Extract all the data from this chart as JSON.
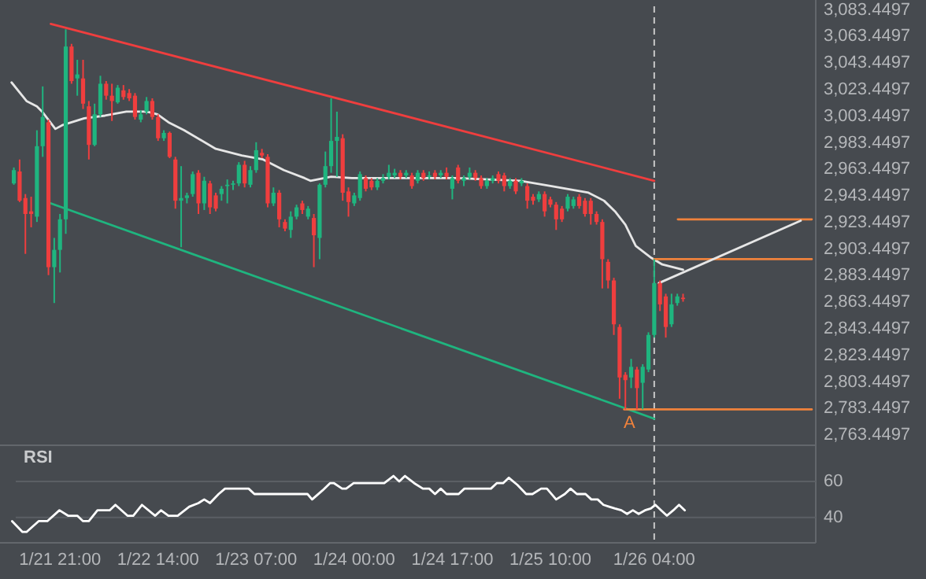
{
  "chart_data": [
    {
      "type": "candlestick",
      "xlim": [
        "--01-21T10:36",
        "--01-27T08:00"
      ],
      "ylim": [
        2756,
        3091
      ],
      "tick_labels": "y",
      "yticks": [
        {
          "value": 2763.4497,
          "label": "2,763.4497"
        },
        {
          "value": 2783.4497,
          "label": "2,783.4497"
        },
        {
          "value": 2803.4497,
          "label": "2,803.4497"
        },
        {
          "value": 2823.4497,
          "label": "2,823.4497"
        },
        {
          "value": 2843.4497,
          "label": "2,843.4497"
        },
        {
          "value": 2863.4497,
          "label": "2,863.4497"
        },
        {
          "value": 2883.4497,
          "label": "2,883.4497"
        },
        {
          "value": 2903.4497,
          "label": "2,903.4497"
        },
        {
          "value": 2923.4497,
          "label": "2,923.4497"
        },
        {
          "value": 2943.4497,
          "label": "2,943.4497"
        },
        {
          "value": 2963.4497,
          "label": "2,963.4497"
        },
        {
          "value": 2983.4497,
          "label": "2,983.4497"
        },
        {
          "value": 3003.4497,
          "label": "3,003.4497"
        },
        {
          "value": 3023.4497,
          "label": "3,023.4497"
        },
        {
          "value": 3043.4497,
          "label": "3,043.4497"
        },
        {
          "value": 3063.4497,
          "label": "3,063.4497"
        },
        {
          "value": 3083.4497,
          "label": "3,083.4497"
        }
      ],
      "x": [
        "--01-21T13:00",
        "--01-21T14:00",
        "--01-21T15:00",
        "--01-21T16:00",
        "--01-21T17:00",
        "--01-21T18:00",
        "--01-21T19:00",
        "--01-21T20:00",
        "--01-21T21:00",
        "--01-21T22:00",
        "--01-21T23:00",
        "--01-22T00:00",
        "--01-22T01:00",
        "--01-22T02:00",
        "--01-22T03:00",
        "--01-22T04:00",
        "--01-22T05:00",
        "--01-22T06:00",
        "--01-22T07:00",
        "--01-22T08:00",
        "--01-22T09:00",
        "--01-22T10:00",
        "--01-22T11:00",
        "--01-22T12:00",
        "--01-22T13:00",
        "--01-22T14:00",
        "--01-22T15:00",
        "--01-22T16:00",
        "--01-22T17:00",
        "--01-22T18:00",
        "--01-22T19:00",
        "--01-22T20:00",
        "--01-22T21:00",
        "--01-22T22:00",
        "--01-22T23:00",
        "--01-23T00:00",
        "--01-23T01:00",
        "--01-23T02:00",
        "--01-23T03:00",
        "--01-23T04:00",
        "--01-23T05:00",
        "--01-23T06:00",
        "--01-23T07:00",
        "--01-23T08:00",
        "--01-23T09:00",
        "--01-23T10:00",
        "--01-23T11:00",
        "--01-23T12:00",
        "--01-23T13:00",
        "--01-23T14:00",
        "--01-23T15:00",
        "--01-23T16:00",
        "--01-23T17:00",
        "--01-23T18:00",
        "--01-23T19:00",
        "--01-23T20:00",
        "--01-23T21:00",
        "--01-23T22:00",
        "--01-23T23:00",
        "--01-24T00:00",
        "--01-24T01:00",
        "--01-24T02:00",
        "--01-24T03:00",
        "--01-24T04:00",
        "--01-24T05:00",
        "--01-24T06:00",
        "--01-24T07:00",
        "--01-24T08:00",
        "--01-24T09:00",
        "--01-24T10:00",
        "--01-24T11:00",
        "--01-24T12:00",
        "--01-24T13:00",
        "--01-24T14:00",
        "--01-24T15:00",
        "--01-24T16:00",
        "--01-24T17:00",
        "--01-24T18:00",
        "--01-24T19:00",
        "--01-24T20:00",
        "--01-24T21:00",
        "--01-24T22:00",
        "--01-24T23:00",
        "--01-25T00:00",
        "--01-25T01:00",
        "--01-25T02:00",
        "--01-25T03:00",
        "--01-25T04:00",
        "--01-25T05:00",
        "--01-25T06:00",
        "--01-25T07:00",
        "--01-25T08:00",
        "--01-25T09:00",
        "--01-25T10:00",
        "--01-25T11:00",
        "--01-25T12:00",
        "--01-25T13:00",
        "--01-25T14:00",
        "--01-25T15:00",
        "--01-25T16:00",
        "--01-25T17:00",
        "--01-25T18:00",
        "--01-25T19:00",
        "--01-25T20:00",
        "--01-25T21:00",
        "--01-25T22:00",
        "--01-25T23:00",
        "--01-26T00:00",
        "--01-26T01:00",
        "--01-26T02:00",
        "--01-26T03:00",
        "--01-26T04:00",
        "--01-26T05:00",
        "--01-26T06:00",
        "--01-26T07:00",
        "--01-26T08:00",
        "--01-26T09:00"
      ],
      "ohlc": [
        [
          2953,
          2965,
          2952,
          2963
        ],
        [
          2962,
          2971,
          2939,
          2940
        ],
        [
          2942,
          2945,
          2900,
          2930
        ],
        [
          2932,
          2943,
          2920,
          2930
        ],
        [
          2928,
          2993,
          2924,
          2981
        ],
        [
          2981,
          3026,
          2973,
          3003
        ],
        [
          2999,
          3001,
          2884,
          2890
        ],
        [
          2890,
          2912,
          2863,
          2903
        ],
        [
          2903,
          2930,
          2886,
          2926
        ],
        [
          2926,
          3069,
          2915,
          3056
        ],
        [
          3056,
          3058,
          3028,
          3030
        ],
        [
          3032,
          3046,
          3019,
          3035
        ],
        [
          3032,
          3046,
          3009,
          3013
        ],
        [
          3011,
          3015,
          2971,
          2982
        ],
        [
          2982,
          3013,
          2981,
          3005
        ],
        [
          3005,
          3034,
          3003,
          3028
        ],
        [
          3028,
          3030,
          3016,
          3019
        ],
        [
          3019,
          3028,
          3000,
          3015
        ],
        [
          3014,
          3027,
          3013,
          3025
        ],
        [
          3023,
          3027,
          3016,
          3018
        ],
        [
          3021,
          3024,
          3015,
          3017
        ],
        [
          3019,
          3021,
          3001,
          3003
        ],
        [
          3001,
          3008,
          2999,
          3005
        ],
        [
          3007,
          3018,
          3005,
          3015
        ],
        [
          3015,
          3017,
          3001,
          3003
        ],
        [
          3003,
          3005,
          2985,
          2987
        ],
        [
          2987,
          2993,
          2985,
          2991
        ],
        [
          2991,
          2992,
          2972,
          2973
        ],
        [
          2971,
          2973,
          2934,
          2940
        ],
        [
          2940,
          2966,
          2905,
          2942
        ],
        [
          2942,
          2946,
          2938,
          2944
        ],
        [
          2945,
          2962,
          2943,
          2960
        ],
        [
          2961,
          2963,
          2930,
          2938
        ],
        [
          2938,
          2958,
          2933,
          2955
        ],
        [
          2953,
          2955,
          2930,
          2935
        ],
        [
          2944,
          2946,
          2932,
          2934
        ],
        [
          2945,
          2951,
          2940,
          2949
        ],
        [
          2951,
          2956,
          2938,
          2952
        ],
        [
          2952,
          2955,
          2948,
          2953
        ],
        [
          2953,
          2969,
          2951,
          2967
        ],
        [
          2967,
          2970,
          2950,
          2953
        ],
        [
          2952,
          2966,
          2950,
          2963
        ],
        [
          2963,
          2984,
          2961,
          2978
        ],
        [
          2976,
          2979,
          2972,
          2974
        ],
        [
          2973,
          2975,
          2935,
          2938
        ],
        [
          2938,
          2950,
          2936,
          2946
        ],
        [
          2946,
          2948,
          2920,
          2926
        ],
        [
          2924,
          2926,
          2917,
          2919
        ],
        [
          2918,
          2932,
          2912,
          2928
        ],
        [
          2928,
          2937,
          2926,
          2935
        ],
        [
          2938,
          2940,
          2930,
          2933
        ],
        [
          2928,
          2936,
          2926,
          2934
        ],
        [
          2927,
          2930,
          2890,
          2914
        ],
        [
          2912,
          2953,
          2896,
          2952
        ],
        [
          2952,
          2977,
          2950,
          2966
        ],
        [
          2966,
          3017,
          2961,
          2985
        ],
        [
          2985,
          3007,
          2958,
          2988
        ],
        [
          2987,
          2990,
          2940,
          2946
        ],
        [
          2947,
          2950,
          2928,
          2939
        ],
        [
          2938,
          2946,
          2936,
          2944
        ],
        [
          2942,
          2962,
          2940,
          2960
        ],
        [
          2957,
          2959,
          2947,
          2949
        ],
        [
          2955,
          2957,
          2948,
          2950
        ],
        [
          2950,
          2957,
          2948,
          2955
        ],
        [
          2955,
          2960,
          2953,
          2957
        ],
        [
          2958,
          2967,
          2956,
          2961
        ],
        [
          2959,
          2964,
          2957,
          2961
        ],
        [
          2961,
          2963,
          2956,
          2958
        ],
        [
          2959,
          2963,
          2957,
          2961
        ],
        [
          2959,
          2961,
          2949,
          2951
        ],
        [
          2955,
          2963,
          2953,
          2961
        ],
        [
          2961,
          2963,
          2955,
          2957
        ],
        [
          2958,
          2962,
          2956,
          2959
        ],
        [
          2961,
          2963,
          2956,
          2958
        ],
        [
          2959,
          2963,
          2957,
          2961
        ],
        [
          2961,
          2965,
          2956,
          2958
        ],
        [
          2949,
          2959,
          2941,
          2957
        ],
        [
          2965,
          2967,
          2953,
          2955
        ],
        [
          2955,
          2959,
          2951,
          2957
        ],
        [
          2958,
          2965,
          2956,
          2961
        ],
        [
          2961,
          2963,
          2955,
          2957
        ],
        [
          2957,
          2959,
          2949,
          2951
        ],
        [
          2951,
          2957,
          2949,
          2955
        ],
        [
          2955,
          2959,
          2953,
          2957
        ],
        [
          2960,
          2962,
          2953,
          2955
        ],
        [
          2959,
          2961,
          2947,
          2951
        ],
        [
          2951,
          2957,
          2949,
          2955
        ],
        [
          2955,
          2957,
          2945,
          2947
        ],
        [
          2953,
          2957,
          2951,
          2955
        ],
        [
          2951,
          2953,
          2934,
          2940
        ],
        [
          2943,
          2945,
          2937,
          2940
        ],
        [
          2941,
          2947,
          2939,
          2945
        ],
        [
          2945,
          2947,
          2928,
          2932
        ],
        [
          2941,
          2943,
          2935,
          2937
        ],
        [
          2937,
          2939,
          2918,
          2926
        ],
        [
          2934,
          2936,
          2924,
          2926
        ],
        [
          2934,
          2945,
          2932,
          2943
        ],
        [
          2936,
          2943,
          2934,
          2941
        ],
        [
          2943,
          2945,
          2934,
          2936
        ],
        [
          2940,
          2942,
          2928,
          2930
        ],
        [
          2940,
          2942,
          2922,
          2930
        ],
        [
          2930,
          2932,
          2922,
          2924
        ],
        [
          2924,
          2926,
          2874,
          2896
        ],
        [
          2894,
          2896,
          2874,
          2880
        ],
        [
          2880,
          2882,
          2839,
          2847
        ],
        [
          2845,
          2847,
          2791,
          2807
        ],
        [
          2809,
          2811,
          2783,
          2805
        ],
        [
          2807,
          2821,
          2799,
          2815
        ],
        [
          2813,
          2815,
          2783,
          2799
        ],
        [
          2803,
          2817,
          2783,
          2815
        ],
        [
          2813,
          2841,
          2811,
          2839
        ],
        [
          2839,
          2896,
          2837,
          2878
        ],
        [
          2878,
          2880,
          2857,
          2862
        ],
        [
          2868,
          2870,
          2837,
          2845
        ],
        [
          2847,
          2870,
          2845,
          2862
        ],
        [
          2863,
          2870,
          2861,
          2868
        ],
        [
          2867,
          2870,
          2864,
          2866
        ]
      ],
      "colors": [
        "#1fb57f",
        "#ef3e3e",
        "#ef3e3e",
        "#ef3e3e",
        "#1fb57f",
        "#1fb57f",
        "#ef3e3e",
        "#1fb57f",
        "#1fb57f",
        "#1fb57f",
        "#ef3e3e",
        "#1fb57f",
        "#ef3e3e",
        "#ef3e3e",
        "#1fb57f",
        "#1fb57f",
        "#ef3e3e",
        "#ef3e3e",
        "#1fb57f",
        "#ef3e3e",
        "#ef3e3e",
        "#ef3e3e",
        "#1fb57f",
        "#1fb57f",
        "#ef3e3e",
        "#ef3e3e",
        "#1fb57f",
        "#ef3e3e",
        "#ef3e3e",
        "#1fb57f",
        "#1fb57f",
        "#1fb57f",
        "#ef3e3e",
        "#1fb57f",
        "#ef3e3e",
        "#ef3e3e",
        "#1fb57f",
        "#1fb57f",
        "#1fb57f",
        "#1fb57f",
        "#ef3e3e",
        "#1fb57f",
        "#1fb57f",
        "#ef3e3e",
        "#ef3e3e",
        "#1fb57f",
        "#ef3e3e",
        "#ef3e3e",
        "#1fb57f",
        "#1fb57f",
        "#ef3e3e",
        "#1fb57f",
        "#ef3e3e",
        "#1fb57f",
        "#1fb57f",
        "#1fb57f",
        "#1fb57f",
        "#ef3e3e",
        "#ef3e3e",
        "#1fb57f",
        "#1fb57f",
        "#ef3e3e",
        "#ef3e3e",
        "#1fb57f",
        "#1fb57f",
        "#1fb57f",
        "#1fb57f",
        "#ef3e3e",
        "#1fb57f",
        "#ef3e3e",
        "#1fb57f",
        "#ef3e3e",
        "#1fb57f",
        "#ef3e3e",
        "#1fb57f",
        "#ef3e3e",
        "#1fb57f",
        "#ef3e3e",
        "#1fb57f",
        "#1fb57f",
        "#ef3e3e",
        "#ef3e3e",
        "#1fb57f",
        "#1fb57f",
        "#ef3e3e",
        "#ef3e3e",
        "#1fb57f",
        "#ef3e3e",
        "#1fb57f",
        "#ef3e3e",
        "#ef3e3e",
        "#1fb57f",
        "#ef3e3e",
        "#ef3e3e",
        "#ef3e3e",
        "#ef3e3e",
        "#1fb57f",
        "#1fb57f",
        "#ef3e3e",
        "#ef3e3e",
        "#ef3e3e",
        "#ef3e3e",
        "#ef3e3e",
        "#ef3e3e",
        "#ef3e3e",
        "#ef3e3e",
        "#ef3e3e",
        "#1fb57f",
        "#ef3e3e",
        "#1fb57f",
        "#1fb57f",
        "#1fb57f",
        "#ef3e3e",
        "#ef3e3e",
        "#1fb57f",
        "#1fb57f",
        "#ef3e3e"
      ],
      "series": [
        {
          "type": "line",
          "color": "#ef3e3e",
          "x": [
            "--01-21T19:24",
            "--01-26T04:00"
          ],
          "values": [
            3073,
            2955
          ]
        },
        {
          "type": "line",
          "color": "#1fb57f",
          "x": [
            "--01-21T19:24",
            "--01-26T04:00"
          ],
          "values": [
            2938,
            2776
          ]
        },
        {
          "type": "line",
          "color": "#e6e6e6",
          "x": [
            "--01-21T12:36",
            "--01-21T15:12",
            "--01-21T17:00",
            "--01-21T17:54",
            "--01-21T20:12",
            "--01-21T21:30",
            "--01-22T01:12",
            "--01-22T04:48",
            "--01-22T08:30",
            "--01-22T12:06",
            "--01-22T13:54",
            "--01-22T15:48",
            "--01-22T18:30",
            "--01-23T00:00",
            "--01-23T04:30",
            "--01-23T08:12",
            "--01-23T11:48",
            "--01-23T15:24",
            "--01-23T16:24",
            "--01-23T20:00",
            "--01-23T23:36",
            "--01-24T08:48",
            "--01-24T17:54",
            "--01-25T04:48",
            "--01-25T10:12",
            "--01-25T16:36",
            "--01-25T19:18",
            "--01-25T21:12",
            "--01-25T23:00",
            "--01-26T00:48",
            "--01-26T03:30",
            "--01-26T05:24",
            "--01-26T09:00"
          ],
          "values": [
            3029,
            3015,
            3011,
            3007,
            2994,
            2997,
            3002,
            3004,
            3007,
            3007,
            3005,
            2999,
            2993,
            2979,
            2974,
            2971,
            2963,
            2957,
            2955,
            2958,
            2957,
            2957,
            2957,
            2955,
            2951,
            2946,
            2940,
            2932,
            2922,
            2906,
            2897,
            2892,
            2888
          ]
        },
        {
          "type": "line",
          "color": "#f0823c",
          "x": [
            "--01-25T22:48",
            "--01-27T07:18"
          ],
          "values": [
            2783,
            2783
          ]
        },
        {
          "type": "line",
          "color": "#f0823c",
          "x": [
            "--01-26T04:00",
            "--01-27T07:18"
          ],
          "values": [
            2896,
            2896
          ]
        },
        {
          "type": "line",
          "color": "#f0823c",
          "x": [
            "--01-26T08:06",
            "--01-27T07:18"
          ],
          "values": [
            2926,
            2926
          ]
        },
        {
          "type": "line",
          "color": "#e6e6e6",
          "x": [
            "--01-26T04:48",
            "--01-27T05:24"
          ],
          "values": [
            2878,
            2925
          ]
        }
      ],
      "ref_lines": [
        {
          "axis": "x",
          "value": "--01-26T04:00",
          "line_style": "dashed",
          "color": "#c8c8c8"
        }
      ],
      "annotations": [
        {
          "text": "A",
          "x": "--01-25T23:42",
          "y": 2783
        }
      ]
    },
    {
      "type": "line",
      "title": "RSI",
      "xlim": [
        "--01-21T10:36",
        "--01-27T08:00"
      ],
      "ylim": [
        26,
        80
      ],
      "yticks": [
        40,
        60
      ],
      "grid": "y",
      "xticks": [
        {
          "value": "--01-21T21:00",
          "label": "1/21 21:00"
        },
        {
          "value": "--01-22T14:00",
          "label": "1/22 14:00"
        },
        {
          "value": "--01-23T07:00",
          "label": "1/23 07:00"
        },
        {
          "value": "--01-24T00:00",
          "label": "1/24 00:00"
        },
        {
          "value": "--01-24T17:00",
          "label": "1/24 17:00"
        },
        {
          "value": "--01-25T10:00",
          "label": "1/25 10:00"
        },
        {
          "value": "--01-26T04:00",
          "label": "1/26 04:00"
        }
      ],
      "series": [
        {
          "color": "#ffffff",
          "x": [
            "--01-21T12:42",
            "--01-21T14:30",
            "--01-21T15:12",
            "--01-21T17:18",
            "--01-21T18:48",
            "--01-21T20:54",
            "--01-21T22:24",
            "--01-22T00:00",
            "--01-22T01:00",
            "--01-22T02:00",
            "--01-22T03:30",
            "--01-22T05:36",
            "--01-22T06:36",
            "--01-22T08:42",
            "--01-22T09:42",
            "--01-22T11:12",
            "--01-22T13:30",
            "--01-22T14:30",
            "--01-22T15:48",
            "--01-22T17:24",
            "--01-22T19:24",
            "--01-22T21:00",
            "--01-22T22:00",
            "--01-22T23:00",
            "--01-23T00:30",
            "--01-23T01:36",
            "--01-23T05:42",
            "--01-23T06:42",
            "--01-23T07:42",
            "--01-23T13:54",
            "--01-23T15:54",
            "--01-23T16:42",
            "--01-23T18:30",
            "--01-23T19:48",
            "--01-23T20:30",
            "--01-23T21:54",
            "--01-23T22:36",
            "--01-23T23:54",
            "--01-24T05:12",
            "--01-24T06:48",
            "--01-24T07:48",
            "--01-24T08:48",
            "--01-24T10:24",
            "--01-24T11:54",
            "--01-24T13:00",
            "--01-24T14:00",
            "--01-24T15:00",
            "--01-24T16:00",
            "--01-24T18:06",
            "--01-24T19:06",
            "--01-24T23:42",
            "--01-25T00:42",
            "--01-25T01:48",
            "--01-25T02:48",
            "--01-25T04:18",
            "--01-25T05:48",
            "--01-25T06:54",
            "--01-25T08:24",
            "--01-25T09:24",
            "--01-25T11:00",
            "--01-25T12:30",
            "--01-25T13:30",
            "--01-25T14:36",
            "--01-25T16:06",
            "--01-25T17:06",
            "--01-25T18:12",
            "--01-25T19:12",
            "--01-25T20:12",
            "--01-25T21:12",
            "--01-25T22:18",
            "--01-25T23:18",
            "--01-26T00:18",
            "--01-26T01:18",
            "--01-26T02:24",
            "--01-26T03:24",
            "--01-26T04:12",
            "--01-26T05:12",
            "--01-26T06:12",
            "--01-26T07:18",
            "--01-26T08:18",
            "--01-26T09:18"
          ],
          "values": [
            38,
            32,
            32,
            38,
            38,
            44,
            41,
            41,
            38,
            38,
            44,
            44,
            47,
            41,
            41,
            47,
            41,
            44,
            41,
            41,
            46,
            48,
            50,
            48,
            53,
            56,
            56,
            53,
            53,
            53,
            53,
            50,
            55,
            59,
            59,
            56,
            56,
            59,
            59,
            63,
            60,
            63,
            59,
            56,
            56,
            53,
            56,
            53,
            53,
            56,
            56,
            59,
            59,
            62,
            58,
            53,
            53,
            56,
            56,
            50,
            53,
            56,
            53,
            53,
            50,
            50,
            47,
            46,
            45,
            44,
            42,
            44,
            42,
            44,
            45,
            47,
            44,
            41,
            44,
            47,
            44
          ]
        }
      ],
      "ref_lines": [
        {
          "axis": "x",
          "value": "--01-26T04:00",
          "line_style": "dashed",
          "color": "#c8c8c8"
        }
      ]
    }
  ]
}
